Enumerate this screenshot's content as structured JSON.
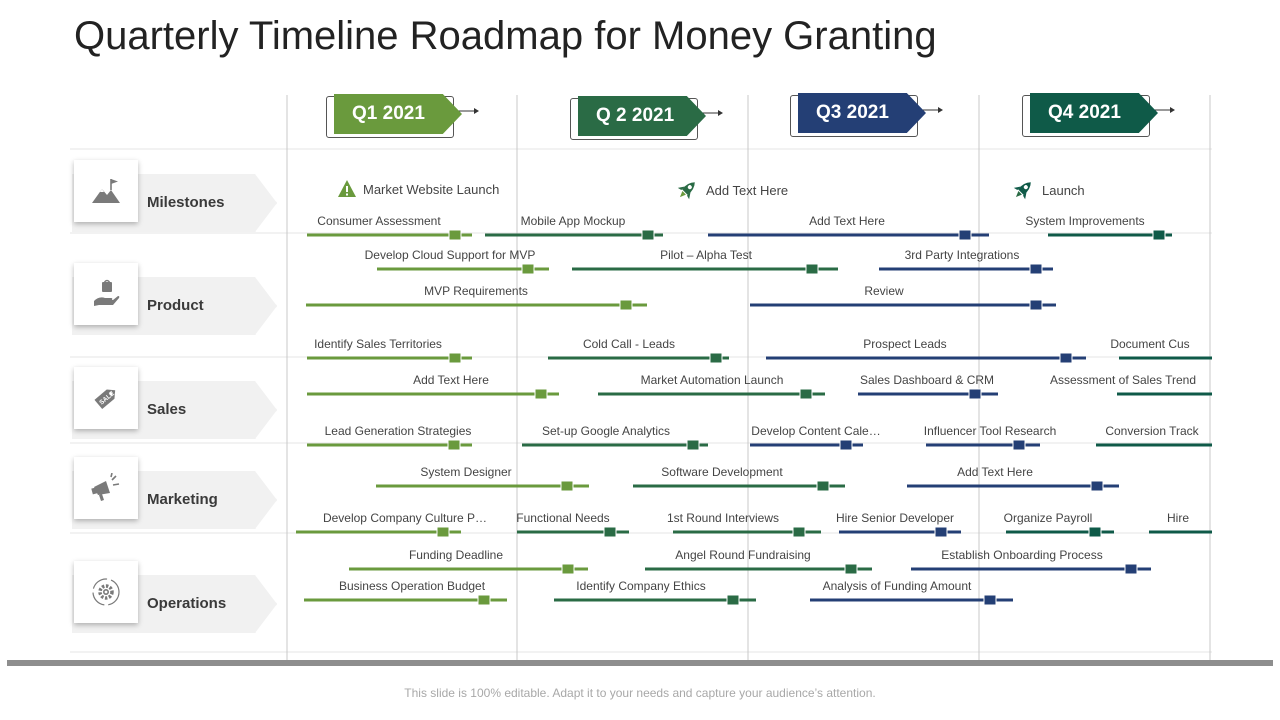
{
  "title": "Quarterly Timeline Roadmap for Money Granting",
  "footer": "This slide is 100% editable. Adapt it to your needs and capture your audience’s attention.",
  "colors": {
    "light_green": "#6a9a3d",
    "dark_green": "#2a6b45",
    "navy": "#243f75",
    "teal": "#0f5a48"
  },
  "quarters": [
    {
      "label": "Q1 2021",
      "color": "#6a9a3d"
    },
    {
      "label": "Q 2 2021",
      "color": "#2a6b45"
    },
    {
      "label": "Q3 2021",
      "color": "#243f75"
    },
    {
      "label": "Q4 2021",
      "color": "#0f5a48"
    }
  ],
  "categories": [
    {
      "label": "Milestones",
      "icon": "mountain-flag-icon"
    },
    {
      "label": "Product",
      "icon": "hand-bag-icon"
    },
    {
      "label": "Sales",
      "icon": "sale-tag-icon"
    },
    {
      "label": "Marketing",
      "icon": "megaphone-icon"
    },
    {
      "label": "Operations",
      "icon": "gear-cycle-icon"
    }
  ],
  "milestones": [
    {
      "label": "Market Website Launch",
      "icon": "warning-icon"
    },
    {
      "label": "Add Text Here",
      "icon": "rocket-icon"
    },
    {
      "label": "Launch",
      "icon": "rocket-icon"
    }
  ],
  "tasks": [
    {
      "label": "Consumer Assessment",
      "color": "light_green"
    },
    {
      "label": "Mobile App Mockup",
      "color": "dark_green"
    },
    {
      "label": "Add Text Here",
      "color": "navy"
    },
    {
      "label": "System Improvements",
      "color": "teal"
    },
    {
      "label": "Develop Cloud Support for MVP",
      "color": "light_green"
    },
    {
      "label": "Pilot – Alpha Test",
      "color": "dark_green"
    },
    {
      "label": "3rd Party Integrations",
      "color": "navy"
    },
    {
      "label": "MVP  Requirements",
      "color": "light_green"
    },
    {
      "label": "Review",
      "color": "navy"
    },
    {
      "label": "Identify Sales Territories",
      "color": "light_green"
    },
    {
      "label": "Cold Call - Leads",
      "color": "dark_green"
    },
    {
      "label": "Prospect Leads",
      "color": "navy"
    },
    {
      "label": "Document Cus",
      "color": "teal"
    },
    {
      "label": "Add Text Here",
      "color": "light_green"
    },
    {
      "label": "Market Automation Launch",
      "color": "dark_green"
    },
    {
      "label": "Sales Dashboard & CRM",
      "color": "navy"
    },
    {
      "label": "Assessment of Sales Trend",
      "color": "teal"
    },
    {
      "label": "Lead Generation Strategies",
      "color": "light_green"
    },
    {
      "label": "Set-up Google Analytics",
      "color": "dark_green"
    },
    {
      "label": "Develop Content Cale…",
      "color": "navy"
    },
    {
      "label": "Influencer Tool Research",
      "color": "navy"
    },
    {
      "label": "Conversion Track",
      "color": "teal"
    },
    {
      "label": "System Designer",
      "color": "light_green"
    },
    {
      "label": "Software Development",
      "color": "dark_green"
    },
    {
      "label": "Add Text Here",
      "color": "navy"
    },
    {
      "label": "Develop Company Culture P…",
      "color": "light_green"
    },
    {
      "label": "Functional Needs",
      "color": "dark_green"
    },
    {
      "label": "1st Round Interviews",
      "color": "dark_green"
    },
    {
      "label": "Hire Senior Developer",
      "color": "navy"
    },
    {
      "label": "Organize Payroll",
      "color": "teal"
    },
    {
      "label": "Hire",
      "color": "teal"
    },
    {
      "label": "Funding Deadline",
      "color": "light_green"
    },
    {
      "label": "Angel Round Fundraising",
      "color": "dark_green"
    },
    {
      "label": "Establish Onboarding Process",
      "color": "navy"
    },
    {
      "label": "Business Operation Budget",
      "color": "light_green"
    },
    {
      "label": "Identify Company Ethics",
      "color": "dark_green"
    },
    {
      "label": "Analysis of Funding Amount",
      "color": "navy"
    }
  ]
}
